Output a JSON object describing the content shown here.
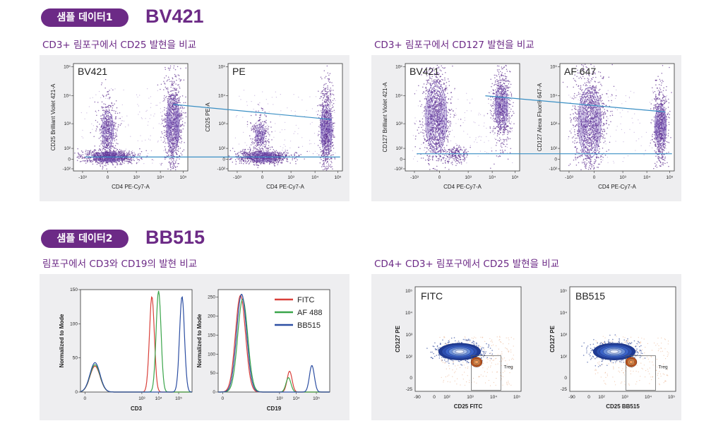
{
  "sample1": {
    "badge": "샘플 데이터1",
    "reagent": "BV421",
    "left_subtitle": "CD3+ 림포구에서 CD25 발현을 비교",
    "right_subtitle": "CD3+ 림포구에서 CD127 발현을 비교",
    "plots": [
      {
        "label": "BV421",
        "ylabel": "CD25 Brilliant Violet 421-A",
        "xlabel": "CD4 PE-Cy7-A"
      },
      {
        "label": "PE",
        "ylabel": "CD25 PE-A",
        "xlabel": "CD4 PE-Cy7-A"
      },
      {
        "label": "BV421",
        "ylabel": "CD127 Brilliant Violet 421-A",
        "xlabel": "CD4 PE-Cy7-A"
      },
      {
        "label": "AF 647",
        "ylabel": "CD127 Alexa Fluor® 647-A",
        "xlabel": "CD4 PE-Cy7-A"
      }
    ],
    "xticks": [
      "-10³",
      "0",
      "10³",
      "10⁴",
      "10⁵"
    ],
    "yticks": [
      "10⁵",
      "10⁴",
      "10³",
      "10²",
      "0",
      "-10²"
    ]
  },
  "sample2": {
    "badge": "샘플 데이터2",
    "reagent": "BB515",
    "left_subtitle": "림포구에서 CD3와 CD19의 발현 비교",
    "right_subtitle": "CD4+ CD3+ 림포구에서 CD25 발현을 비교",
    "flow_plots": [
      {
        "label": "FITC",
        "ylabel": "CD127 PE",
        "xlabel": "CD25 FITC",
        "gate": "Treg"
      },
      {
        "label": "BB515",
        "ylabel": "CD127 PE",
        "xlabel": "CD25 BB515",
        "gate": "Treg"
      }
    ],
    "flow_xticks": [
      "-90",
      "0",
      "10²",
      "10³",
      "10⁴",
      "10⁵"
    ],
    "flow_yticks": [
      "10⁵",
      "10⁴",
      "10³",
      "10²",
      "0",
      "-25"
    ]
  },
  "chart_data": [
    {
      "type": "line",
      "title": "",
      "xlabel": "CD3",
      "ylabel": "Normalized to Mode",
      "ylim": [
        0,
        150
      ],
      "yticks": [
        0,
        50,
        100,
        150
      ],
      "xticks": [
        "0",
        "10³",
        "10⁴",
        "10⁵"
      ],
      "series": [
        {
          "name": "FITC",
          "color": "#d9403a",
          "peaks": [
            {
              "x": 0.13,
              "y": 38
            },
            {
              "x": 0.64,
              "y": 140
            }
          ]
        },
        {
          "name": "AF 488",
          "color": "#3aa54a",
          "peaks": [
            {
              "x": 0.13,
              "y": 40
            },
            {
              "x": 0.7,
              "y": 148
            }
          ]
        },
        {
          "name": "BB515",
          "color": "#2d4fa3",
          "peaks": [
            {
              "x": 0.13,
              "y": 43
            },
            {
              "x": 0.91,
              "y": 140
            }
          ]
        }
      ]
    },
    {
      "type": "line",
      "title": "",
      "xlabel": "CD19",
      "ylabel": "Normalized to Mode",
      "ylim": [
        0,
        270
      ],
      "yticks": [
        0,
        50,
        100,
        150,
        200,
        250
      ],
      "xticks": [
        "0",
        "10³",
        "10⁴",
        "10⁵"
      ],
      "legend_position": "top-right",
      "series": [
        {
          "name": "FITC",
          "color": "#d9403a",
          "peaks": [
            {
              "x": 0.2,
              "y": 255
            },
            {
              "x": 0.64,
              "y": 55
            }
          ]
        },
        {
          "name": "AF 488",
          "color": "#3aa54a",
          "peaks": [
            {
              "x": 0.22,
              "y": 245
            },
            {
              "x": 0.63,
              "y": 38
            }
          ]
        },
        {
          "name": "BB515",
          "color": "#2d4fa3",
          "peaks": [
            {
              "x": 0.21,
              "y": 258
            },
            {
              "x": 0.84,
              "y": 70
            }
          ]
        }
      ]
    }
  ]
}
